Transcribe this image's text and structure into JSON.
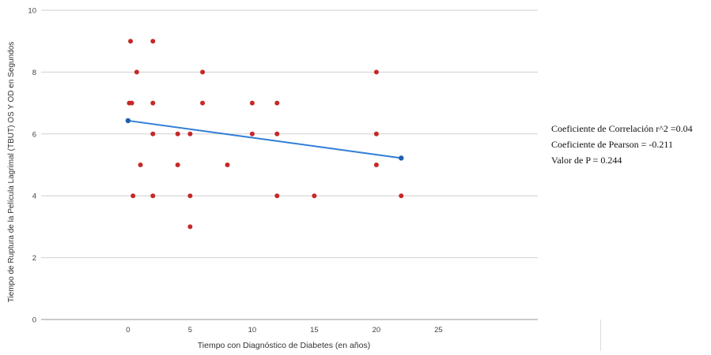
{
  "chart_data": {
    "type": "scatter",
    "xlabel": "Tiempo con Diagnóstico de Diabetes (en años)",
    "ylabel": "Tiempo de Ruptura de la Película Lagrimal (TBUT)  OS Y OD en Segundos",
    "x_ticks": [
      "0",
      "5",
      "10",
      "15",
      "20",
      "25"
    ],
    "y_ticks": [
      "0",
      "2",
      "4",
      "6",
      "8",
      "10"
    ],
    "xlim": [
      -7,
      33
    ],
    "ylim": [
      0,
      10
    ],
    "grid": "horizontal",
    "points": [
      {
        "x": 0.2,
        "y": 9
      },
      {
        "x": 2,
        "y": 9
      },
      {
        "x": 0.7,
        "y": 8
      },
      {
        "x": 6,
        "y": 8
      },
      {
        "x": 20,
        "y": 8
      },
      {
        "x": 0.1,
        "y": 7
      },
      {
        "x": 0.3,
        "y": 7
      },
      {
        "x": 2,
        "y": 7
      },
      {
        "x": 6,
        "y": 7
      },
      {
        "x": 10,
        "y": 7
      },
      {
        "x": 12,
        "y": 7
      },
      {
        "x": 2,
        "y": 6
      },
      {
        "x": 4,
        "y": 6
      },
      {
        "x": 5,
        "y": 6
      },
      {
        "x": 10,
        "y": 6
      },
      {
        "x": 12,
        "y": 6
      },
      {
        "x": 20,
        "y": 6
      },
      {
        "x": 1,
        "y": 5
      },
      {
        "x": 4,
        "y": 5
      },
      {
        "x": 8,
        "y": 5
      },
      {
        "x": 20,
        "y": 5
      },
      {
        "x": 0.4,
        "y": 4
      },
      {
        "x": 2,
        "y": 4
      },
      {
        "x": 5,
        "y": 4
      },
      {
        "x": 12,
        "y": 4
      },
      {
        "x": 15,
        "y": 4
      },
      {
        "x": 22,
        "y": 4
      },
      {
        "x": 5,
        "y": 3
      }
    ],
    "trendline": {
      "x": [
        0,
        22
      ],
      "y": [
        6.43,
        5.22
      ]
    },
    "colors": {
      "points": "#c62828",
      "trendline": "#2f7ed8",
      "trendline_ends": "#1f5fae",
      "grid": "#cfcfcf",
      "axis_text": "#444444"
    }
  },
  "stats": {
    "r2": "Coeficiente de Correlación r^2 =0.04",
    "pearson": "Coeficiente de Pearson = -0.211",
    "p_value": "Valor de P = 0.244"
  }
}
